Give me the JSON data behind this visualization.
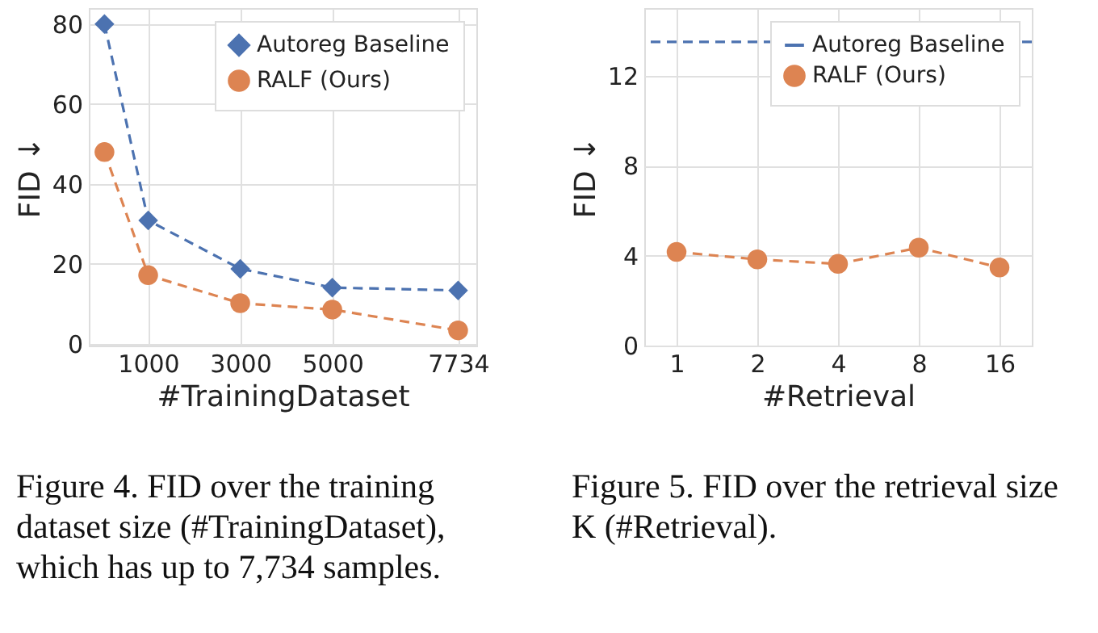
{
  "chart_data": [
    {
      "type": "line",
      "xlabel": "#TrainingDataset",
      "ylabel": "FID ↓",
      "x": [
        50,
        1000,
        3000,
        5000,
        7734
      ],
      "xlim": [
        -290,
        8130
      ],
      "xticks": [
        1000,
        3000,
        5000,
        7734
      ],
      "ylim": [
        -0.4,
        84
      ],
      "yticks": [
        0,
        20,
        40,
        60,
        80
      ],
      "grid": true,
      "legend": "top right",
      "line_style": "dashed",
      "series": [
        {
          "name": "Autoreg Baseline",
          "color": "#4c72b0",
          "marker": "diamond",
          "values": [
            80,
            30.9,
            18.8,
            14.1,
            13.4
          ]
        },
        {
          "name": "RALF (Ours)",
          "color": "#dd8452",
          "marker": "circle",
          "values": [
            48,
            17.2,
            10.2,
            8.6,
            3.4
          ]
        }
      ],
      "annotations": [
        "Figure 4. FID over the training dataset size (#TrainingDataset), which has up to 7,734 samples."
      ]
    },
    {
      "type": "line",
      "xlabel": "#Retrieval",
      "ylabel": "FID ↓",
      "categories": [
        "1",
        "2",
        "4",
        "8",
        "16"
      ],
      "ylim": [
        0,
        15
      ],
      "yticks": [
        0,
        4,
        8,
        12
      ],
      "grid": true,
      "legend": "top right",
      "line_style": "dashed",
      "ref_lines": [
        {
          "axis": "y",
          "value": 13.5,
          "label": "Autoreg Baseline",
          "color": "#4c72b0",
          "line_style": "dashed"
        }
      ],
      "series": [
        {
          "name": "RALF (Ours)",
          "color": "#dd8452",
          "marker": "circle",
          "values": [
            4.16,
            3.83,
            3.63,
            4.35,
            3.47
          ]
        }
      ],
      "annotations": [
        "Figure 5. FID over the retrieval size K (#Retrieval)."
      ]
    }
  ]
}
